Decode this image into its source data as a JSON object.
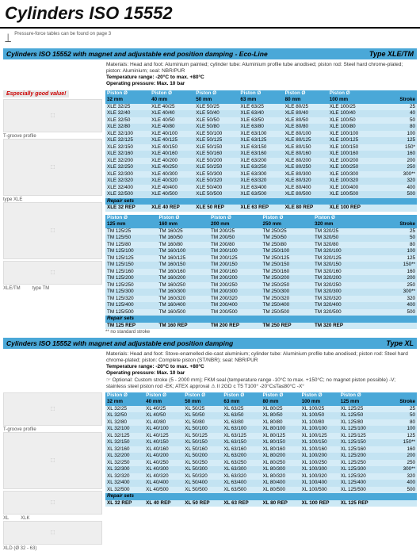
{
  "page_title": "Cylinders ISO 15552",
  "side_note": "Pressure-force tables can be found on page 3",
  "section1": {
    "header_left": "Cylinders ISO 15552 with magnet and adjustable end position damping - Eco-Line",
    "header_right": "Type XLE/TM",
    "materials": "Materials: Head and foot: Aluminium painted; cylinder tube: Aluminium profile tube anodised; piston rod: Steel hard chrome-plated; piston: Aluminium; seal: NBR/PUR",
    "temp": "Temperature range: -20°C to max. +80°C",
    "press": "Operating pressure: Max. 10 bar",
    "badge": "Especially good value!",
    "img_labels": [
      "T-groove profile",
      "type XLE",
      "XLE/TM",
      "type TM"
    ],
    "piston_label": "Piston Ø",
    "stroke_label": "Stroke",
    "repair_label": "Repair sets",
    "footnote": "** no standard stroke",
    "t1": {
      "diam": [
        "32 mm",
        "40 mm",
        "50 mm",
        "63 mm",
        "80 mm",
        "100 mm"
      ],
      "strokes": [
        "25",
        "40",
        "50",
        "80",
        "100",
        "125",
        "150*",
        "160",
        "200",
        "250",
        "300**",
        "320",
        "400",
        "500"
      ],
      "rows": [
        [
          "XLE 32/25",
          "XLE 40/25",
          "XLE 50/25",
          "XLE 63/25",
          "XLE 80/25",
          "XLE 100/25"
        ],
        [
          "XLE 32/40",
          "XLE 40/40",
          "XLE 50/40",
          "XLE 63/40",
          "XLE 80/40",
          "XLE 100/40"
        ],
        [
          "XLE 32/50",
          "XLE 40/50",
          "XLE 50/50",
          "XLE 63/50",
          "XLE 80/50",
          "XLE 100/50"
        ],
        [
          "XLE 32/80",
          "XLE 40/80",
          "XLE 50/80",
          "XLE 63/80",
          "XLE 80/80",
          "XLE 100/80"
        ],
        [
          "XLE 32/100",
          "XLE 40/100",
          "XLE 50/100",
          "XLE 63/100",
          "XLE 80/100",
          "XLE 100/100"
        ],
        [
          "XLE 32/125",
          "XLE 40/125",
          "XLE 50/125",
          "XLE 63/125",
          "XLE 80/125",
          "XLE 100/125"
        ],
        [
          "XLE 32/150",
          "XLE 40/150",
          "XLE 50/150",
          "XLE 63/150",
          "XLE 80/150",
          "XLE 100/150"
        ],
        [
          "XLE 32/160",
          "XLE 40/160",
          "XLE 50/160",
          "XLE 63/160",
          "XLE 80/160",
          "XLE 100/160"
        ],
        [
          "XLE 32/200",
          "XLE 40/200",
          "XLE 50/200",
          "XLE 63/200",
          "XLE 80/200",
          "XLE 100/200"
        ],
        [
          "XLE 32/250",
          "XLE 40/250",
          "XLE 50/250",
          "XLE 63/250",
          "XLE 80/250",
          "XLE 100/250"
        ],
        [
          "XLE 32/300",
          "XLE 40/300",
          "XLE 50/300",
          "XLE 63/300",
          "XLE 80/300",
          "XLE 100/300"
        ],
        [
          "XLE 32/320",
          "XLE 40/320",
          "XLE 50/320",
          "XLE 63/320",
          "XLE 80/320",
          "XLE 100/320"
        ],
        [
          "XLE 32/400",
          "XLE 40/400",
          "XLE 50/400",
          "XLE 63/400",
          "XLE 80/400",
          "XLE 100/400"
        ],
        [
          "XLE 32/500",
          "XLE 40/500",
          "XLE 50/500",
          "XLE 63/500",
          "XLE 80/500",
          "XLE 100/500"
        ]
      ],
      "repair": [
        "XLE 32 REP",
        "XLE 40 REP",
        "XLE 50 REP",
        "XLE 63 REP",
        "XLE 80 REP",
        "XLE 100 REP"
      ]
    },
    "t2": {
      "diam": [
        "125 mm",
        "160 mm",
        "200 mm",
        "250 mm",
        "320 mm"
      ],
      "strokes": [
        "25",
        "50",
        "80",
        "100",
        "125",
        "150**",
        "160",
        "200",
        "250",
        "300**",
        "320",
        "400",
        "500"
      ],
      "rows": [
        [
          "TM 125/25",
          "TM 160/25",
          "TM 200/25",
          "TM 250/25",
          "TM 320/25"
        ],
        [
          "TM 125/50",
          "TM 160/50",
          "TM 200/50",
          "TM 250/50",
          "TM 320/50"
        ],
        [
          "TM 125/80",
          "TM 160/80",
          "TM 200/80",
          "TM 250/80",
          "TM 320/80"
        ],
        [
          "TM 125/100",
          "TM 160/100",
          "TM 200/100",
          "TM 250/100",
          "TM 320/100"
        ],
        [
          "TM 125/125",
          "TM 160/125",
          "TM 200/125",
          "TM 250/125",
          "TM 320/125"
        ],
        [
          "TM 125/150",
          "TM 160/150",
          "TM 200/150",
          "TM 250/150",
          "TM 320/150"
        ],
        [
          "TM 125/160",
          "TM 160/160",
          "TM 200/160",
          "TM 250/160",
          "TM 320/160"
        ],
        [
          "TM 125/200",
          "TM 160/200",
          "TM 200/200",
          "TM 250/200",
          "TM 320/200"
        ],
        [
          "TM 125/250",
          "TM 160/250",
          "TM 200/250",
          "TM 250/250",
          "TM 320/250"
        ],
        [
          "TM 125/300",
          "TM 160/300",
          "TM 200/300",
          "TM 250/300",
          "TM 320/300"
        ],
        [
          "TM 125/320",
          "TM 160/320",
          "TM 200/320",
          "TM 250/320",
          "TM 320/320"
        ],
        [
          "TM 125/400",
          "TM 160/400",
          "TM 200/400",
          "TM 250/400",
          "TM 320/400"
        ],
        [
          "TM 125/500",
          "TM 160/500",
          "TM 200/500",
          "TM 250/500",
          "TM 320/500"
        ]
      ],
      "repair": [
        "TM 125 REP",
        "TM 160 REP",
        "TM 200 REP",
        "TM 250 REP",
        "TM 320 REP"
      ]
    }
  },
  "section2": {
    "header_left": "Cylinders ISO 15552 with magnet and adjustable end position damping",
    "header_right": "Type XL",
    "materials": "Materials: Head and foot: Stove-enamelled die-cast aluminium; cylinder tube: Aluminium profile tube anodised; piston rod: Steel hard chrome-plated; piston: Complete piston (ST/NBR); seal: NBR/PUR",
    "temp": "Temperature range: -20°C to max. +80°C",
    "press": "Operating pressure: Max. 10 bar",
    "optional": "☞ Optional: Custom stroke (5 - 2000 mm); FKM seal (temperature range -10°C to max. +150°C; no magnet piston possible) -V; stainless steel piston rod -EK; ATEX approval ⚠ II 2GD c T5 T100° -20°C≤Ta≤80°C -X°",
    "img_labels": [
      "T-groove profile",
      "XL",
      "XLK",
      "XLD (Ø 32 - 63)"
    ],
    "t1": {
      "diam": [
        "32 mm",
        "40 mm",
        "50 mm",
        "63 mm",
        "80 mm",
        "100 mm",
        "125 mm"
      ],
      "strokes": [
        "25",
        "50",
        "80",
        "100",
        "125",
        "150**",
        "160",
        "200",
        "250",
        "300**",
        "320",
        "400",
        "500"
      ],
      "rows": [
        [
          "XL 32/25",
          "XL 40/25",
          "XL 50/25",
          "XL 63/25",
          "XL 80/25",
          "XL 100/25",
          "XL 125/25"
        ],
        [
          "XL 32/50",
          "XL 40/50",
          "XL 50/50",
          "XL 63/50",
          "XL 80/50",
          "XL 100/50",
          "XL 125/50"
        ],
        [
          "XL 32/80",
          "XL 40/80",
          "XL 50/80",
          "XL 63/80",
          "XL 80/80",
          "XL 100/80",
          "XL 125/80"
        ],
        [
          "XL 32/100",
          "XL 40/100",
          "XL 50/100",
          "XL 63/100",
          "XL 80/100",
          "XL 100/100",
          "XL 125/100"
        ],
        [
          "XL 32/125",
          "XL 40/125",
          "XL 50/125",
          "XL 63/125",
          "XL 80/125",
          "XL 100/125",
          "XL 125/125"
        ],
        [
          "XL 32/150",
          "XL 40/150",
          "XL 50/150",
          "XL 63/150",
          "XL 80/150",
          "XL 100/150",
          "XL 125/150"
        ],
        [
          "XL 32/160",
          "XL 40/160",
          "XL 50/160",
          "XL 63/160",
          "XL 80/160",
          "XL 100/160",
          "XL 125/160"
        ],
        [
          "XL 32/200",
          "XL 40/200",
          "XL 50/200",
          "XL 63/200",
          "XL 80/200",
          "XL 100/200",
          "XL 125/200"
        ],
        [
          "XL 32/250",
          "XL 40/250",
          "XL 50/250",
          "XL 63/250",
          "XL 80/250",
          "XL 100/250",
          "XL 125/250"
        ],
        [
          "XL 32/300",
          "XL 40/300",
          "XL 50/300",
          "XL 63/300",
          "XL 80/300",
          "XL 100/300",
          "XL 125/300"
        ],
        [
          "XL 32/320",
          "XL 40/320",
          "XL 50/320",
          "XL 63/320",
          "XL 80/320",
          "XL 100/320",
          "XL 125/320"
        ],
        [
          "XL 32/400",
          "XL 40/400",
          "XL 50/400",
          "XL 63/400",
          "XL 80/400",
          "XL 100/400",
          "XL 125/400"
        ],
        [
          "XL 32/500",
          "XL 40/500",
          "XL 50/500",
          "XL 63/500",
          "XL 80/500",
          "XL 100/500",
          "XL 125/500"
        ]
      ],
      "repair": [
        "XL 32 REP",
        "XL 40 REP",
        "XL 50 REP",
        "XL 63 REP",
        "XL 80 REP",
        "XL 100 REP",
        "XL 125 REP"
      ]
    }
  }
}
